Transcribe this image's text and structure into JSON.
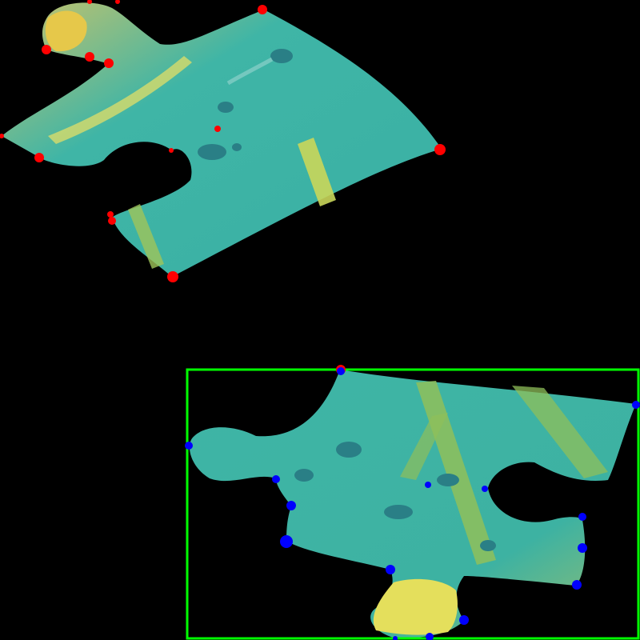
{
  "scene": {
    "background_color": "#000000",
    "pieces": [
      {
        "name": "puzzle-piece-upper-left",
        "surface_color": "#3fb5a6",
        "edge_tint": "#b9c46a",
        "keypoint_color": "#ff0000",
        "keypoint_count": 16
      },
      {
        "name": "puzzle-piece-lower-right",
        "surface_color": "#3fb5a6",
        "edge_tint": "#e8e060",
        "keypoint_color": "#0000ff",
        "keypoint_count": 18,
        "bounding_box_color": "#00ff00"
      }
    ]
  }
}
